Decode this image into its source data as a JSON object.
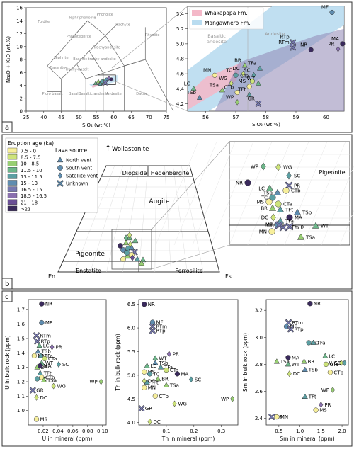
{
  "panels": {
    "a": "a",
    "b": "b",
    "c": "c"
  },
  "tas": {
    "xlabel": "SiO₂ (wt.%)",
    "ylabel": "Na₂O + K₂O (wt.%)",
    "xticks": [
      "35",
      "40",
      "45",
      "50",
      "55",
      "60",
      "65",
      "70",
      "75"
    ],
    "yticks": [
      "0",
      "2",
      "4",
      "6",
      "8",
      "10",
      "12",
      "14",
      "16"
    ],
    "fields": [
      "Foidite",
      "Tephriphonolite",
      "Phonolite",
      "Phonotephrite",
      "Trachyte",
      "Tephrite",
      "Trachyandesite",
      "Basanite",
      "Basaltic trachy-andesite",
      "Rhyolite",
      "Trachy-basalt",
      "Picro basalt",
      "Basalt",
      "Basaltic andesite",
      "Andesite",
      "Dacite"
    ]
  },
  "zoom": {
    "legend": [
      "Whakapapa Fm.",
      "Mangawhero Fm."
    ],
    "legend_colors": [
      "#f4b8c8",
      "#b9dcf0"
    ],
    "fields": [
      "Basaltic andesite",
      "Andesite"
    ],
    "xlabel": "SiO₂ (wt.%)",
    "xticks": [
      "56",
      "57",
      "58",
      "59",
      "60"
    ],
    "yticks": [
      "4.2",
      "4.4",
      "4.6",
      "4.8",
      "5.0",
      "5.2",
      "5.4"
    ]
  },
  "pyx": {
    "title": "Wollastonite",
    "legend_title": "Eruption age (ka)",
    "ages": [
      "7.5 - 0",
      "8.5 - 7.5",
      "10 - 8.5",
      "11.5 - 10",
      "13 - 11.5",
      "15 - 13",
      "16.5 - 15",
      "18.5 - 16.5",
      "21 - 18",
      ">21"
    ],
    "age_colors": [
      "#f7ef9b",
      "#cde37a",
      "#98cf73",
      "#6db68a",
      "#5c9fa3",
      "#5f8db0",
      "#7779b0",
      "#8a70ae",
      "#6a4f96",
      "#3a2a5c"
    ],
    "source_title": "Lava source",
    "sources": [
      "North vent",
      "South vent",
      "Satellite vent",
      "Unknown"
    ],
    "fields": [
      "Diopside",
      "Hedenbergite",
      "Augite",
      "Pigeonite",
      "Enstatite",
      "Ferrosilite"
    ],
    "corners": [
      "En",
      "Fs"
    ],
    "zoom_field": "Pigeonite"
  },
  "trace_axes": [
    {
      "xlabel": "U in mineral (ppm)",
      "ylabel": "U in bulk rock (ppm)",
      "xticks": [
        "0.02",
        "0.04",
        "0.06",
        "0.08",
        "0.10"
      ],
      "yticks": [
        "1.0",
        "1.1",
        "1.2",
        "1.3",
        "1.4",
        "1.5",
        "1.6",
        "1.7"
      ]
    },
    {
      "xlabel": "Th in mineral (ppm)",
      "ylabel": "Th in bulk rock (ppm)",
      "xticks": [
        "0.1",
        "0.2",
        "0.3"
      ],
      "yticks": [
        "4.0",
        "4.5",
        "5.0",
        "5.5",
        "6.0",
        "6.5"
      ]
    },
    {
      "xlabel": "Sm in mineral (ppm)",
      "ylabel": "Sm in bulk rock (ppm)",
      "xticks": [
        "0.5",
        "1.0",
        "1.5",
        "2.0"
      ],
      "yticks": [
        "2.4",
        "2.6",
        "2.8",
        "3.0",
        "3.2"
      ]
    }
  ],
  "chart_data": [
    {
      "type": "scatter",
      "title": "",
      "xlabel": "SiO₂ (wt.%)",
      "ylabel": "Na₂O + K₂O (wt.%)",
      "xlim": [
        35,
        75
      ],
      "ylim": [
        0,
        16
      ],
      "points": [
        {
          "x": 54.8,
          "y": 4.3,
          "age": 3,
          "shape": "tri"
        },
        {
          "x": 55.6,
          "y": 4.6,
          "age": 2,
          "shape": "tri"
        },
        {
          "x": 56.3,
          "y": 4.5,
          "age": 1,
          "shape": "tri"
        },
        {
          "x": 56.7,
          "y": 4.6,
          "age": 4,
          "shape": "circ"
        },
        {
          "x": 57.3,
          "y": 4.7,
          "age": 3,
          "shape": "dia"
        },
        {
          "x": 58.0,
          "y": 4.9,
          "age": 5,
          "shape": "circ"
        },
        {
          "x": 58.6,
          "y": 5.1,
          "age": 7,
          "shape": "dia"
        },
        {
          "x": 59.3,
          "y": 4.9,
          "age": 9,
          "shape": "circ"
        },
        {
          "x": 57.6,
          "y": 4.4,
          "age": 6,
          "shape": "cross"
        },
        {
          "x": 56.1,
          "y": 4.2,
          "age": 4,
          "shape": "tri"
        }
      ]
    },
    {
      "type": "scatter",
      "title": "",
      "xlabel": "SiO₂ (wt.%)",
      "xlim": [
        55.4,
        60.6
      ],
      "ylim": [
        4.1,
        5.5
      ],
      "points": [
        {
          "label": "MF",
          "x": 60.2,
          "y": 5.42,
          "age": 5,
          "shape": "circ"
        },
        {
          "label": "RTp",
          "x": 58.9,
          "y": 5.02,
          "age": 6,
          "shape": "cross"
        },
        {
          "label": "RTm",
          "x": 58.9,
          "y": 4.95,
          "age": 6,
          "shape": "cross"
        },
        {
          "label": "MA",
          "x": 60.55,
          "y": 5.0,
          "age": 9,
          "shape": "circ"
        },
        {
          "label": "NR",
          "x": 59.5,
          "y": 4.92,
          "age": 9,
          "shape": "circ"
        },
        {
          "label": "PR",
          "x": 60.4,
          "y": 4.93,
          "age": 7,
          "shape": "dia"
        },
        {
          "label": "TFa",
          "x": 57.8,
          "y": 4.67,
          "age": 4,
          "shape": "tri"
        },
        {
          "label": "BR",
          "x": 57.3,
          "y": 4.71,
          "age": 2,
          "shape": "tri"
        },
        {
          "label": "DC",
          "x": 57.25,
          "y": 4.6,
          "age": 1,
          "shape": "dia"
        },
        {
          "label": "SC",
          "x": 57.6,
          "y": 4.58,
          "age": 4,
          "shape": "dia"
        },
        {
          "label": "MN",
          "x": 56.3,
          "y": 4.58,
          "age": 0,
          "shape": "circ"
        },
        {
          "label": "TC",
          "x": 57.0,
          "y": 4.58,
          "age": 4,
          "shape": "circ"
        },
        {
          "label": "CTa",
          "x": 57.55,
          "y": 4.5,
          "age": 1,
          "shape": "circ"
        },
        {
          "label": "WT",
          "x": 57.75,
          "y": 4.47,
          "age": 3,
          "shape": "tri"
        },
        {
          "label": "WG",
          "x": 56.85,
          "y": 4.47,
          "age": 1,
          "shape": "dia"
        },
        {
          "label": "MS",
          "x": 57.45,
          "y": 4.43,
          "age": 0,
          "shape": "circ"
        },
        {
          "label": "LC",
          "x": 55.6,
          "y": 4.4,
          "age": 3,
          "shape": "tri"
        },
        {
          "label": "TSa",
          "x": 56.55,
          "y": 4.38,
          "age": 2,
          "shape": "tri"
        },
        {
          "label": "CTb",
          "x": 57.05,
          "y": 4.35,
          "age": 0,
          "shape": "circ"
        },
        {
          "label": "TFt",
          "x": 57.45,
          "y": 4.32,
          "age": 4,
          "shape": "tri"
        },
        {
          "label": "TSb",
          "x": 55.8,
          "y": 4.28,
          "age": 5,
          "shape": "tri"
        },
        {
          "label": "WP",
          "x": 57.05,
          "y": 4.22,
          "age": 2,
          "shape": "dia"
        },
        {
          "label": "GR",
          "x": 57.75,
          "y": 4.2,
          "age": 6,
          "shape": "cross"
        }
      ]
    },
    {
      "type": "scatter",
      "title": "",
      "xlabel": "U in mineral (ppm)",
      "ylabel": "U in bulk rock (ppm)",
      "xlim": [
        0,
        0.105
      ],
      "ylim": [
        0.9,
        1.77
      ],
      "points": [
        {
          "label": "NR",
          "x": 0.018,
          "y": 1.74,
          "age": 9,
          "shape": "circ"
        },
        {
          "label": "MF",
          "x": 0.018,
          "y": 1.61,
          "age": 5,
          "shape": "circ"
        },
        {
          "label": "RTm",
          "x": 0.011,
          "y": 1.52,
          "age": 6,
          "shape": "cross"
        },
        {
          "label": "RTp",
          "x": 0.012,
          "y": 1.48,
          "age": 6,
          "shape": "cross"
        },
        {
          "label": "LC",
          "x": 0.015,
          "y": 1.45,
          "age": 3,
          "shape": "tri"
        },
        {
          "label": "PR",
          "x": 0.032,
          "y": 1.44,
          "age": 7,
          "shape": "dia"
        },
        {
          "label": "TSb",
          "x": 0.013,
          "y": 1.41,
          "age": 5,
          "shape": "tri"
        },
        {
          "label": "MN",
          "x": 0.008,
          "y": 1.38,
          "age": 0,
          "shape": "circ"
        },
        {
          "label": "TFa",
          "x": 0.017,
          "y": 1.38,
          "age": 4,
          "shape": "tri"
        },
        {
          "label": "CTa",
          "x": 0.022,
          "y": 1.36,
          "age": 1,
          "shape": "circ"
        },
        {
          "label": "WT",
          "x": 0.018,
          "y": 1.33,
          "age": 3,
          "shape": "tri"
        },
        {
          "label": "SC",
          "x": 0.041,
          "y": 1.32,
          "age": 4,
          "shape": "dia"
        },
        {
          "label": "BR",
          "x": 0.012,
          "y": 1.3,
          "age": 2,
          "shape": "tri"
        },
        {
          "label": "MA",
          "x": 0.016,
          "y": 1.31,
          "age": 9,
          "shape": "circ"
        },
        {
          "label": "TFt",
          "x": 0.016,
          "y": 1.26,
          "age": 4,
          "shape": "tri"
        },
        {
          "label": "TC",
          "x": 0.012,
          "y": 1.22,
          "age": 4,
          "shape": "circ"
        },
        {
          "label": "CTb",
          "x": 0.018,
          "y": 1.23,
          "age": 0,
          "shape": "circ"
        },
        {
          "label": "TSa",
          "x": 0.021,
          "y": 1.21,
          "age": 2,
          "shape": "tri"
        },
        {
          "label": "WP",
          "x": 0.098,
          "y": 1.2,
          "age": 2,
          "shape": "dia"
        },
        {
          "label": "WG",
          "x": 0.034,
          "y": 1.17,
          "age": 1,
          "shape": "dia"
        },
        {
          "label": "GR",
          "x": 0.006,
          "y": 1.14,
          "age": 6,
          "shape": "cross"
        },
        {
          "label": "DC",
          "x": 0.011,
          "y": 1.09,
          "age": 1,
          "shape": "dia"
        },
        {
          "label": "MS",
          "x": 0.011,
          "y": 0.94,
          "age": 0,
          "shape": "circ"
        }
      ]
    },
    {
      "type": "scatter",
      "title": "",
      "xlabel": "Th in mineral (ppm)",
      "ylabel": "Th in bulk rock (ppm)",
      "xlim": [
        0,
        0.36
      ],
      "ylim": [
        3.95,
        6.6
      ],
      "points": [
        {
          "label": "NR",
          "x": 0.02,
          "y": 6.5,
          "age": 9,
          "shape": "circ"
        },
        {
          "label": "MF",
          "x": 0.05,
          "y": 6.12,
          "age": 5,
          "shape": "circ"
        },
        {
          "label": "RTm",
          "x": 0.05,
          "y": 6.03,
          "age": 6,
          "shape": "cross"
        },
        {
          "label": "RTp",
          "x": 0.05,
          "y": 5.94,
          "age": 6,
          "shape": "cross"
        },
        {
          "label": "PR",
          "x": 0.11,
          "y": 5.45,
          "age": 7,
          "shape": "dia"
        },
        {
          "label": "WT",
          "x": 0.06,
          "y": 5.36,
          "age": 3,
          "shape": "tri"
        },
        {
          "label": "TSb",
          "x": 0.06,
          "y": 5.26,
          "age": 5,
          "shape": "tri"
        },
        {
          "label": "LC",
          "x": 0.03,
          "y": 5.2,
          "age": 3,
          "shape": "tri"
        },
        {
          "label": "TFa",
          "x": 0.08,
          "y": 5.17,
          "age": 4,
          "shape": "tri"
        },
        {
          "label": "CTa",
          "x": 0.1,
          "y": 5.11,
          "age": 1,
          "shape": "circ"
        },
        {
          "label": "MS",
          "x": 0.02,
          "y": 5.07,
          "age": 0,
          "shape": "circ"
        },
        {
          "label": "MA",
          "x": 0.14,
          "y": 5.03,
          "age": 9,
          "shape": "circ"
        },
        {
          "label": "TC",
          "x": 0.04,
          "y": 5.03,
          "age": 4,
          "shape": "circ"
        },
        {
          "label": "SC",
          "x": 0.19,
          "y": 4.91,
          "age": 4,
          "shape": "dia"
        },
        {
          "label": "BR",
          "x": 0.07,
          "y": 4.92,
          "age": 2,
          "shape": "tri"
        },
        {
          "label": "DC",
          "x": 0.02,
          "y": 4.88,
          "age": 1,
          "shape": "dia"
        },
        {
          "label": "TFt",
          "x": 0.03,
          "y": 4.85,
          "age": 4,
          "shape": "tri"
        },
        {
          "label": "TSa",
          "x": 0.1,
          "y": 4.79,
          "age": 2,
          "shape": "tri"
        },
        {
          "label": "MN",
          "x": 0.02,
          "y": 4.74,
          "age": 0,
          "shape": "circ"
        },
        {
          "label": "CTb",
          "x": 0.06,
          "y": 4.56,
          "age": 0,
          "shape": "circ"
        },
        {
          "label": "WP",
          "x": 0.34,
          "y": 4.5,
          "age": 2,
          "shape": "dia"
        },
        {
          "label": "WG",
          "x": 0.13,
          "y": 4.4,
          "age": 1,
          "shape": "dia"
        },
        {
          "label": "GR",
          "x": 0.01,
          "y": 4.3,
          "age": 6,
          "shape": "cross"
        },
        {
          "label": "DC",
          "x": 0.04,
          "y": 4.02,
          "age": 1,
          "shape": "dia"
        }
      ]
    },
    {
      "type": "scatter",
      "title": "",
      "xlabel": "Sm in mineral (ppm)",
      "ylabel": "Sm in bulk rock (ppm)",
      "xlim": [
        0.2,
        2.15
      ],
      "ylim": [
        2.35,
        3.28
      ],
      "points": [
        {
          "label": "NR",
          "x": 1.24,
          "y": 3.25,
          "age": 9,
          "shape": "circ"
        },
        {
          "label": "RTm",
          "x": 0.73,
          "y": 3.11,
          "age": 6,
          "shape": "cross"
        },
        {
          "label": "MF",
          "x": 0.68,
          "y": 3.08,
          "age": 5,
          "shape": "circ"
        },
        {
          "label": "RTp",
          "x": 0.78,
          "y": 3.06,
          "age": 6,
          "shape": "cross"
        },
        {
          "label": "TC",
          "x": 1.21,
          "y": 2.96,
          "age": 4,
          "shape": "circ"
        },
        {
          "label": "TFa",
          "x": 1.32,
          "y": 2.96,
          "age": 4,
          "shape": "tri"
        },
        {
          "label": "MA",
          "x": 0.72,
          "y": 2.85,
          "age": 9,
          "shape": "circ"
        },
        {
          "label": "LC",
          "x": 1.6,
          "y": 2.86,
          "age": 3,
          "shape": "tri"
        },
        {
          "label": "TSa",
          "x": 0.45,
          "y": 2.82,
          "age": 2,
          "shape": "tri"
        },
        {
          "label": "BR",
          "x": 1.1,
          "y": 2.82,
          "age": 2,
          "shape": "tri"
        },
        {
          "label": "WT",
          "x": 0.72,
          "y": 2.8,
          "age": 3,
          "shape": "tri"
        },
        {
          "label": "CTa",
          "x": 1.62,
          "y": 2.8,
          "age": 1,
          "shape": "circ"
        },
        {
          "label": "WG",
          "x": 1.98,
          "y": 2.81,
          "age": 1,
          "shape": "dia"
        },
        {
          "label": "SC",
          "x": 2.06,
          "y": 2.81,
          "age": 4,
          "shape": "dia"
        },
        {
          "label": "TSb",
          "x": 1.12,
          "y": 2.76,
          "age": 5,
          "shape": "tri"
        },
        {
          "label": "DC",
          "x": 0.75,
          "y": 2.73,
          "age": 1,
          "shape": "dia"
        },
        {
          "label": "CTb",
          "x": 1.72,
          "y": 2.74,
          "age": 0,
          "shape": "circ"
        },
        {
          "label": "WP",
          "x": 1.78,
          "y": 2.61,
          "age": 2,
          "shape": "dia"
        },
        {
          "label": "TFt",
          "x": 1.12,
          "y": 2.56,
          "age": 4,
          "shape": "tri"
        },
        {
          "label": "PR",
          "x": 1.5,
          "y": 2.5,
          "age": 7,
          "shape": "dia"
        },
        {
          "label": "MS",
          "x": 1.38,
          "y": 2.46,
          "age": 0,
          "shape": "circ"
        },
        {
          "label": "GR",
          "x": 0.33,
          "y": 2.41,
          "age": 6,
          "shape": "cross"
        },
        {
          "label": "MN",
          "x": 0.45,
          "y": 2.41,
          "age": 0,
          "shape": "circ"
        }
      ]
    }
  ]
}
